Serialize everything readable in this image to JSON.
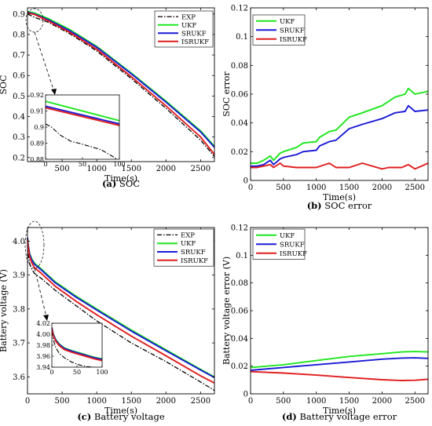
{
  "colors": {
    "EXP": "#000000",
    "UKF": "#1ee61e",
    "SRUKF": "#1a1ad6",
    "ISRUKF": "#e01e1e"
  },
  "chart_data": [
    {
      "id": "a",
      "type": "line",
      "caption_tag": "(a)",
      "caption_text": " SOC",
      "xlabel": "Time(s)",
      "ylabel": "SOC",
      "xlim": [
        0,
        2700
      ],
      "ylim": [
        0.18,
        0.93
      ],
      "xticks": [
        500,
        1000,
        1500,
        2000,
        2500
      ],
      "xtick_labels": [
        "500",
        "1000",
        "1500",
        "2000",
        "2500"
      ],
      "yticks": [
        0.2,
        0.3,
        0.4,
        0.5,
        0.6,
        0.7,
        0.8,
        0.9
      ],
      "ytick_labels": [
        "0.2",
        "0.3",
        "0.4",
        "0.5",
        "0.6",
        "0.7",
        "0.8",
        "0.9"
      ],
      "legend": {
        "position": "top-right",
        "entries": [
          "EXP",
          "UKF",
          "SRUKF",
          "ISRUKF"
        ]
      },
      "series": [
        {
          "name": "EXP",
          "style": "dashdot",
          "x": [
            0,
            100,
            300,
            600,
            1000,
            1500,
            2000,
            2500,
            2700
          ],
          "y": [
            0.9,
            0.884,
            0.86,
            0.806,
            0.72,
            0.585,
            0.44,
            0.285,
            0.205
          ]
        },
        {
          "name": "UKF",
          "style": "solid",
          "x": [
            0,
            100,
            300,
            600,
            1000,
            1500,
            2000,
            2500,
            2700
          ],
          "y": [
            0.912,
            0.905,
            0.878,
            0.826,
            0.742,
            0.612,
            0.475,
            0.33,
            0.255
          ]
        },
        {
          "name": "SRUKF",
          "style": "solid",
          "x": [
            0,
            100,
            300,
            600,
            1000,
            1500,
            2000,
            2500,
            2700
          ],
          "y": [
            0.908,
            0.9,
            0.872,
            0.82,
            0.738,
            0.608,
            0.47,
            0.325,
            0.25
          ]
        },
        {
          "name": "ISRUKF",
          "style": "solid",
          "x": [
            0,
            100,
            300,
            600,
            1000,
            1500,
            2000,
            2500,
            2700
          ],
          "y": [
            0.905,
            0.898,
            0.866,
            0.812,
            0.728,
            0.594,
            0.452,
            0.3,
            0.215
          ]
        }
      ],
      "inset": {
        "xlim": [
          0,
          100
        ],
        "ylim": [
          0.88,
          0.92
        ],
        "xticks": [
          0,
          50,
          100
        ],
        "xtick_labels": [
          "0",
          "50",
          "100"
        ],
        "yticks": [
          0.88,
          0.89,
          0.9,
          0.91,
          0.92
        ],
        "ytick_labels": [
          "0.88",
          "0.89",
          "0.9",
          "0.91",
          "0.92"
        ],
        "series": [
          {
            "name": "EXP",
            "style": "dashdot",
            "x": [
              0,
              8,
              20,
              35,
              45,
              60,
              75,
              90,
              100
            ],
            "y": [
              0.902,
              0.9,
              0.895,
              0.891,
              0.89,
              0.888,
              0.886,
              0.882,
              0.879
            ]
          },
          {
            "name": "UKF",
            "style": "solid",
            "x": [
              0,
              100
            ],
            "y": [
              0.916,
              0.904
            ]
          },
          {
            "name": "SRUKF",
            "style": "solid",
            "x": [
              0,
              100
            ],
            "y": [
              0.913,
              0.902
            ]
          },
          {
            "name": "ISRUKF",
            "style": "solid",
            "x": [
              0,
              100
            ],
            "y": [
              0.912,
              0.901
            ]
          }
        ]
      }
    },
    {
      "id": "b",
      "type": "line",
      "caption_tag": "(b)",
      "caption_text": " SOC error",
      "xlabel": "Time(s)",
      "ylabel": "SOC error",
      "xlim": [
        0,
        2700
      ],
      "ylim": [
        0,
        0.12
      ],
      "xticks": [
        0,
        500,
        1000,
        1500,
        2000,
        2500
      ],
      "xtick_labels": [
        "0",
        "500",
        "1000",
        "1500",
        "2000",
        "2500"
      ],
      "yticks": [
        0,
        0.02,
        0.04,
        0.06,
        0.08,
        0.1,
        0.12
      ],
      "ytick_labels": [
        "0",
        "0.02",
        "0.04",
        "0.06",
        "0.08",
        "0.1",
        "0.12"
      ],
      "legend": {
        "position": "top-left",
        "entries": [
          "UKF",
          "SRUKF",
          "ISRUKF"
        ]
      },
      "series": [
        {
          "name": "UKF",
          "style": "solid",
          "x": [
            0,
            100,
            200,
            300,
            350,
            450,
            500,
            700,
            800,
            1000,
            1050,
            1200,
            1300,
            1500,
            1700,
            2000,
            2200,
            2350,
            2400,
            2500,
            2700
          ],
          "y": [
            0.012,
            0.012,
            0.014,
            0.017,
            0.014,
            0.019,
            0.02,
            0.023,
            0.026,
            0.027,
            0.03,
            0.034,
            0.035,
            0.044,
            0.047,
            0.052,
            0.058,
            0.06,
            0.064,
            0.06,
            0.062
          ]
        },
        {
          "name": "SRUKF",
          "style": "solid",
          "x": [
            0,
            100,
            200,
            300,
            350,
            450,
            500,
            700,
            800,
            1000,
            1050,
            1200,
            1300,
            1500,
            1700,
            2000,
            2200,
            2350,
            2400,
            2500,
            2700
          ],
          "y": [
            0.01,
            0.01,
            0.011,
            0.014,
            0.011,
            0.015,
            0.016,
            0.018,
            0.02,
            0.021,
            0.024,
            0.027,
            0.028,
            0.036,
            0.039,
            0.043,
            0.047,
            0.048,
            0.052,
            0.048,
            0.049
          ]
        },
        {
          "name": "ISRUKF",
          "style": "solid",
          "x": [
            0,
            100,
            200,
            300,
            350,
            450,
            500,
            700,
            1000,
            1200,
            1300,
            1500,
            1700,
            2000,
            2100,
            2300,
            2400,
            2500,
            2600,
            2700
          ],
          "y": [
            0.009,
            0.009,
            0.01,
            0.011,
            0.009,
            0.012,
            0.01,
            0.009,
            0.009,
            0.012,
            0.009,
            0.009,
            0.012,
            0.008,
            0.009,
            0.009,
            0.011,
            0.008,
            0.01,
            0.012
          ]
        }
      ]
    },
    {
      "id": "c",
      "type": "line",
      "caption_tag": "(c)",
      "caption_text": " Battery voltage",
      "xlabel": "Time(s)",
      "ylabel": "Battery voltage (V)",
      "xlim": [
        0,
        2700
      ],
      "ylim": [
        3.55,
        4.04
      ],
      "xticks": [
        0,
        500,
        1000,
        1500,
        2000,
        2500
      ],
      "xtick_labels": [
        "0",
        "500",
        "1000",
        "1500",
        "2000",
        "2500"
      ],
      "yticks": [
        3.6,
        3.7,
        3.8,
        3.9,
        4.0
      ],
      "ytick_labels": [
        "3.6",
        "3.7",
        "3.8",
        "3.9",
        "4.0"
      ],
      "legend": {
        "position": "top-right",
        "entries": [
          "EXP",
          "UKF",
          "SRUKF",
          "ISRUKF"
        ]
      },
      "series": [
        {
          "name": "EXP",
          "style": "dashdot",
          "x": [
            0,
            10,
            30,
            60,
            100,
            200,
            400,
            700,
            1000,
            1500,
            2000,
            2500,
            2700
          ],
          "y": [
            3.99,
            3.96,
            3.935,
            3.918,
            3.905,
            3.89,
            3.855,
            3.81,
            3.765,
            3.7,
            3.645,
            3.585,
            3.56
          ]
        },
        {
          "name": "UKF",
          "style": "solid",
          "x": [
            0,
            10,
            30,
            60,
            100,
            200,
            400,
            700,
            1000,
            1500,
            2000,
            2500,
            2700
          ],
          "y": [
            4.01,
            3.99,
            3.965,
            3.948,
            3.935,
            3.918,
            3.88,
            3.838,
            3.8,
            3.738,
            3.68,
            3.622,
            3.6
          ]
        },
        {
          "name": "SRUKF",
          "style": "solid",
          "x": [
            0,
            10,
            30,
            60,
            100,
            200,
            400,
            700,
            1000,
            1500,
            2000,
            2500,
            2700
          ],
          "y": [
            4.01,
            3.988,
            3.962,
            3.945,
            3.932,
            3.915,
            3.877,
            3.835,
            3.797,
            3.735,
            3.677,
            3.62,
            3.598
          ]
        },
        {
          "name": "ISRUKF",
          "style": "solid",
          "x": [
            0,
            10,
            30,
            60,
            100,
            200,
            400,
            700,
            1000,
            1500,
            2000,
            2500,
            2700
          ],
          "y": [
            4.005,
            3.982,
            3.955,
            3.937,
            3.922,
            3.905,
            3.867,
            3.823,
            3.783,
            3.72,
            3.662,
            3.603,
            3.582
          ]
        }
      ],
      "inset": {
        "xlim": [
          0,
          100
        ],
        "ylim": [
          3.94,
          4.02
        ],
        "xticks": [
          0,
          50,
          100
        ],
        "xtick_labels": [
          "0",
          "50",
          "100"
        ],
        "yticks": [
          3.94,
          3.96,
          3.98,
          4.0,
          4.02
        ],
        "ytick_labels": [
          "3.94",
          "3.96",
          "3.98",
          "4.00",
          "4.02"
        ],
        "series": [
          {
            "name": "EXP",
            "style": "dashdot",
            "x": [
              0,
              3,
              8,
              15,
              25,
              40,
              55,
              70,
              80,
              90,
              100
            ],
            "y": [
              4.005,
              3.99,
              3.975,
              3.965,
              3.957,
              3.949,
              3.944,
              3.941,
              3.94,
              3.939,
              3.938
            ]
          },
          {
            "name": "UKF",
            "style": "solid",
            "x": [
              0,
              3,
              8,
              15,
              25,
              40,
              55,
              70,
              85,
              100
            ],
            "y": [
              4.012,
              4.0,
              3.99,
              3.982,
              3.975,
              3.97,
              3.966,
              3.962,
              3.958,
              3.955
            ]
          },
          {
            "name": "SRUKF",
            "style": "solid",
            "x": [
              0,
              3,
              8,
              15,
              25,
              40,
              55,
              70,
              85,
              100
            ],
            "y": [
              4.012,
              3.999,
              3.989,
              3.981,
              3.974,
              3.969,
              3.965,
              3.961,
              3.957,
              3.954
            ]
          },
          {
            "name": "ISRUKF",
            "style": "solid",
            "x": [
              0,
              3,
              8,
              15,
              25,
              40,
              55,
              70,
              85,
              100
            ],
            "y": [
              4.01,
              3.997,
              3.987,
              3.979,
              3.972,
              3.967,
              3.963,
              3.959,
              3.955,
              3.952
            ]
          }
        ]
      }
    },
    {
      "id": "d",
      "type": "line",
      "caption_tag": "(d)",
      "caption_text": " Battery voltage error",
      "xlabel": "Time(s)",
      "ylabel": "Battery voltage error (V)",
      "xlim": [
        0,
        2700
      ],
      "ylim": [
        0,
        0.12
      ],
      "xticks": [
        0,
        500,
        1000,
        1500,
        2000,
        2500
      ],
      "xtick_labels": [
        "0",
        "500",
        "1000",
        "1500",
        "2000",
        "2500"
      ],
      "yticks": [
        0,
        0.02,
        0.04,
        0.06,
        0.08,
        0.1,
        0.12
      ],
      "ytick_labels": [
        "0",
        "0.02",
        "0.04",
        "0.06",
        "0.08",
        "0.1",
        "0.12"
      ],
      "legend": {
        "position": "top-left",
        "entries": [
          "UKF",
          "SRUKF",
          "ISRUKF"
        ]
      },
      "series": [
        {
          "name": "UKF",
          "style": "solid",
          "x": [
            0,
            500,
            1000,
            1500,
            2000,
            2300,
            2500,
            2700
          ],
          "y": [
            0.019,
            0.021,
            0.024,
            0.027,
            0.029,
            0.0302,
            0.0305,
            0.0302
          ]
        },
        {
          "name": "SRUKF",
          "style": "solid",
          "x": [
            0,
            500,
            1000,
            1500,
            2000,
            2300,
            2500,
            2700
          ],
          "y": [
            0.017,
            0.019,
            0.021,
            0.023,
            0.025,
            0.0258,
            0.026,
            0.0256
          ]
        },
        {
          "name": "ISRUKF",
          "style": "solid",
          "x": [
            0,
            500,
            1000,
            1500,
            2000,
            2300,
            2500,
            2700
          ],
          "y": [
            0.016,
            0.015,
            0.0135,
            0.0118,
            0.0102,
            0.0096,
            0.0098,
            0.0105
          ]
        }
      ]
    }
  ]
}
